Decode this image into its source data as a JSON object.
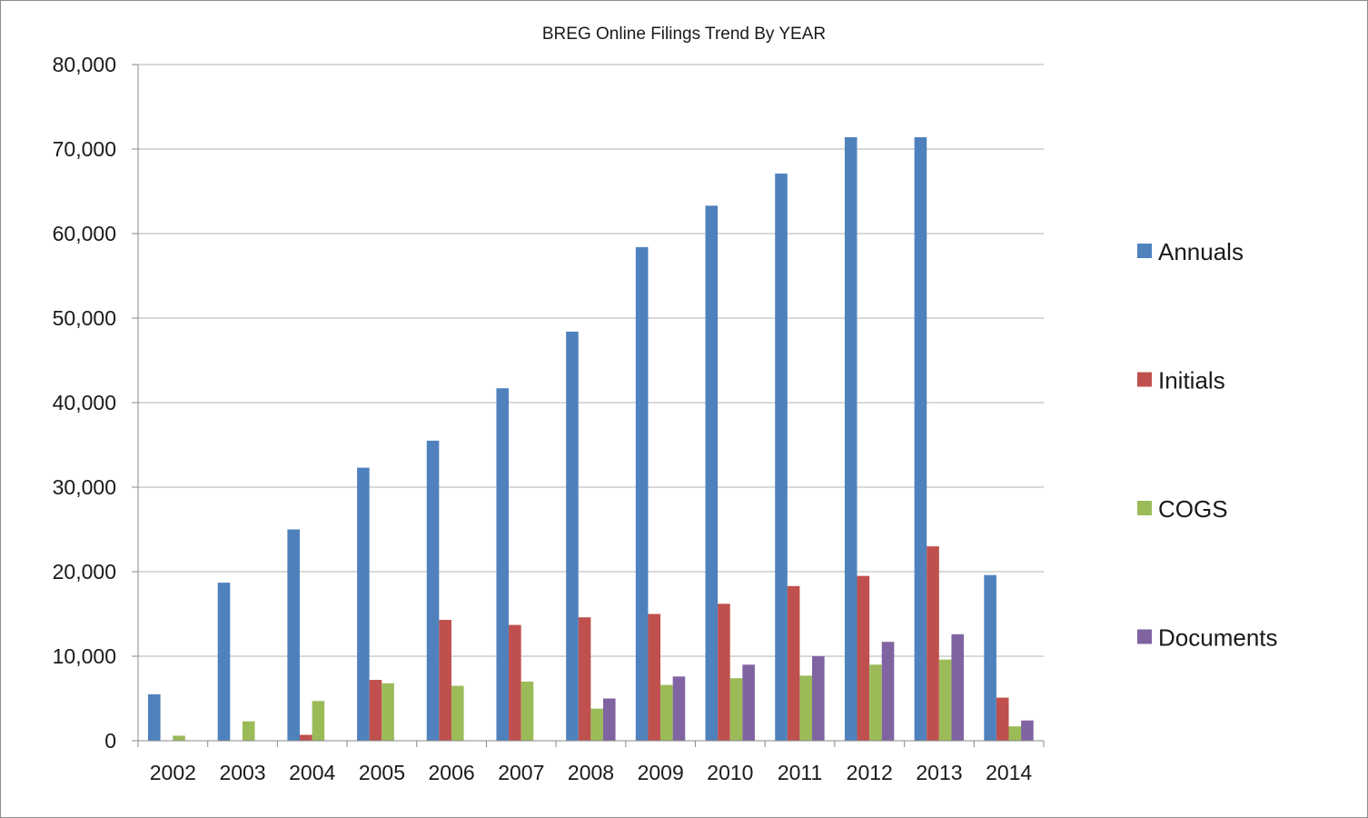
{
  "chart_data": {
    "type": "bar",
    "title": "BREG Online Filings Trend By YEAR",
    "xlabel": "",
    "ylabel": "",
    "ylim": [
      0,
      80000
    ],
    "yticks": [
      0,
      10000,
      20000,
      30000,
      40000,
      50000,
      60000,
      70000,
      80000
    ],
    "ytick_labels": [
      "0",
      "10,000",
      "20,000",
      "30,000",
      "40,000",
      "50,000",
      "60,000",
      "70,000",
      "80,000"
    ],
    "categories": [
      "2002",
      "2003",
      "2004",
      "2005",
      "2006",
      "2007",
      "2008",
      "2009",
      "2010",
      "2011",
      "2012",
      "2013",
      "2014"
    ],
    "grid": true,
    "legend_position": "right",
    "series": [
      {
        "name": "Annuals",
        "color": "#4f81bd",
        "values": [
          5500,
          18700,
          25000,
          32300,
          35500,
          41700,
          48400,
          58400,
          63300,
          67100,
          71400,
          71400,
          19600
        ]
      },
      {
        "name": "Initials",
        "color": "#c0504d",
        "values": [
          0,
          0,
          700,
          7200,
          14300,
          13700,
          14600,
          15000,
          16200,
          18300,
          19500,
          23000,
          5100
        ]
      },
      {
        "name": "COGS",
        "color": "#9bbb59",
        "values": [
          600,
          2300,
          4700,
          6800,
          6500,
          7000,
          3800,
          6600,
          7400,
          7700,
          9000,
          9600,
          1700
        ]
      },
      {
        "name": "Documents",
        "color": "#8064a2",
        "values": [
          0,
          0,
          0,
          0,
          0,
          0,
          5000,
          7600,
          9000,
          10000,
          11700,
          12600,
          2400
        ]
      }
    ]
  }
}
